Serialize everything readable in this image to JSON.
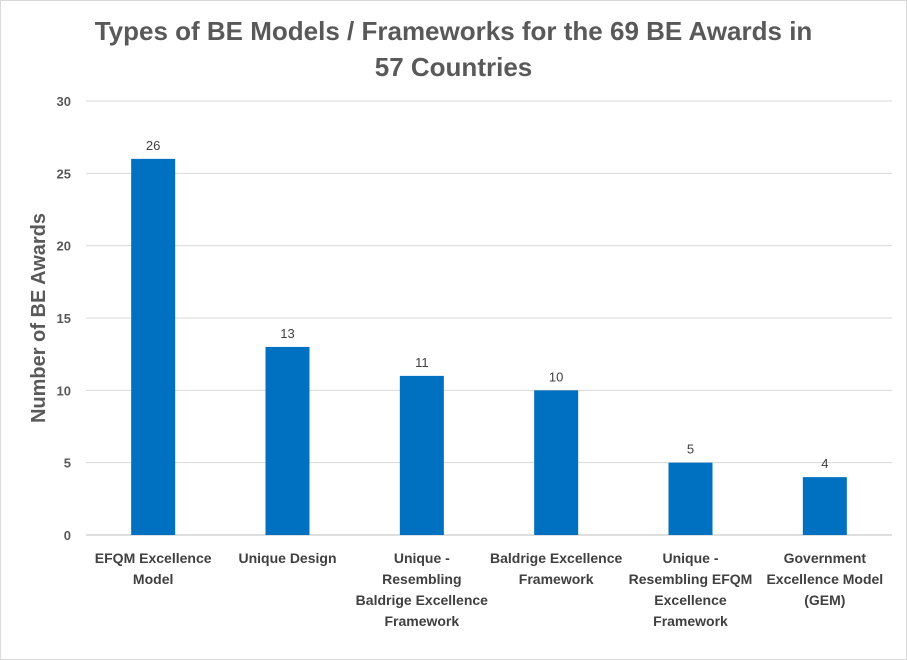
{
  "chart_data": {
    "type": "bar",
    "title_lines": [
      "Types of BE Models / Frameworks for the 69 BE Awards in",
      "57 Countries"
    ],
    "xlabel": "",
    "ylabel": "Number of BE Awards",
    "categories": [
      "EFQM Excellence Model",
      "Unique Design",
      "Unique - Resembling Baldrige Excellence Framework",
      "Baldrige Excellence Framework",
      "Unique - Resembling EFQM Excellence Framework",
      "Government Excellence Model (GEM)"
    ],
    "values": [
      26,
      13,
      11,
      10,
      5,
      4
    ],
    "ylim": [
      0,
      30
    ],
    "yticks": [
      0,
      5,
      10,
      15,
      20,
      25,
      30
    ],
    "grid": true,
    "legend": "none",
    "bar_color": "#0070c0"
  }
}
